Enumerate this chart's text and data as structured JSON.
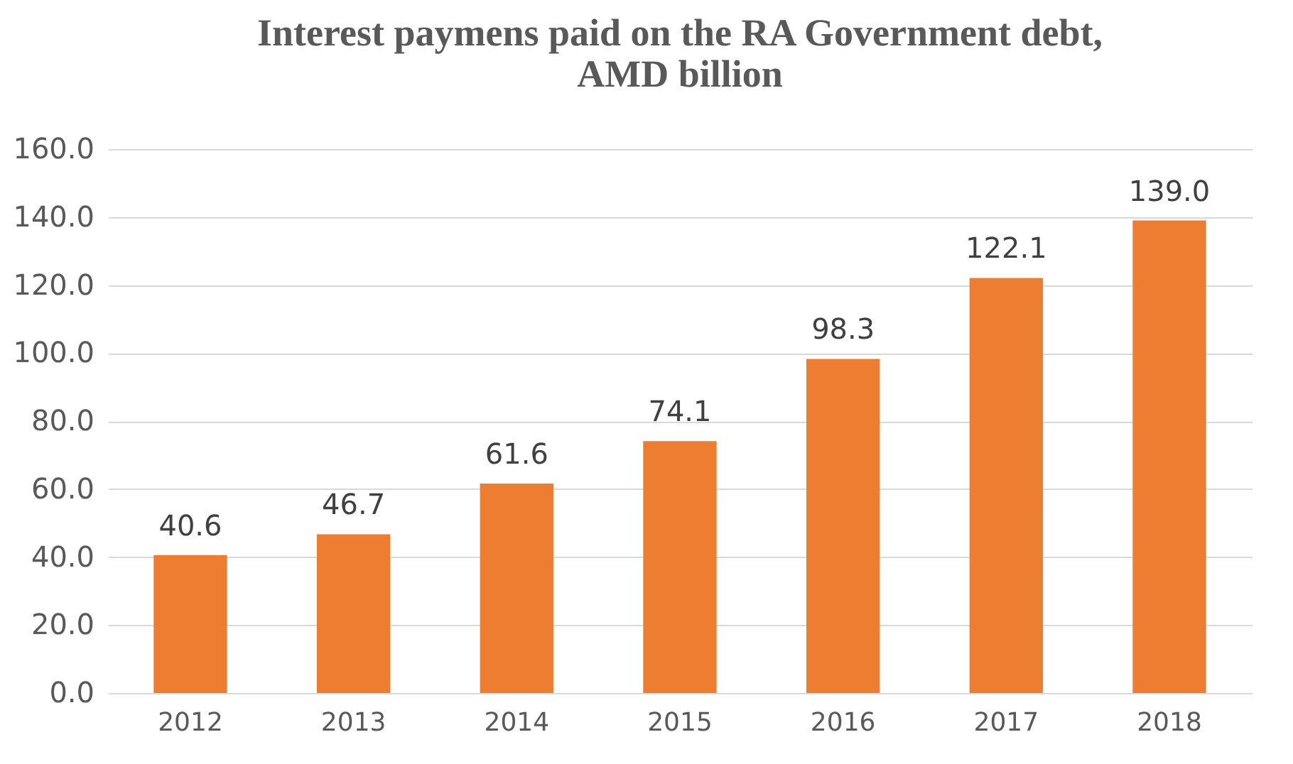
{
  "chart_data": {
    "type": "bar",
    "title": "Interest paymens paid on the RA Government debt,\nAMD billion",
    "categories": [
      "2012",
      "2013",
      "2014",
      "2015",
      "2016",
      "2017",
      "2018"
    ],
    "values": [
      40.6,
      46.7,
      61.6,
      74.1,
      98.3,
      122.1,
      139.0
    ],
    "color": "#ed7d31",
    "ylim": [
      0,
      160
    ],
    "yticks": [
      {
        "value": 0,
        "label": "0.0"
      },
      {
        "value": 20,
        "label": "20.0"
      },
      {
        "value": 40,
        "label": "40.0"
      },
      {
        "value": 60,
        "label": "60.0"
      },
      {
        "value": 80,
        "label": "80.0"
      },
      {
        "value": 100,
        "label": "100.0"
      },
      {
        "value": 120,
        "label": "120.0"
      },
      {
        "value": 140,
        "label": "140.0"
      },
      {
        "value": 160,
        "label": "160.0"
      }
    ],
    "grid": "y",
    "value_labels": [
      "40.6",
      "46.7",
      "61.6",
      "74.1",
      "98.3",
      "122.1",
      "139.0"
    ]
  }
}
